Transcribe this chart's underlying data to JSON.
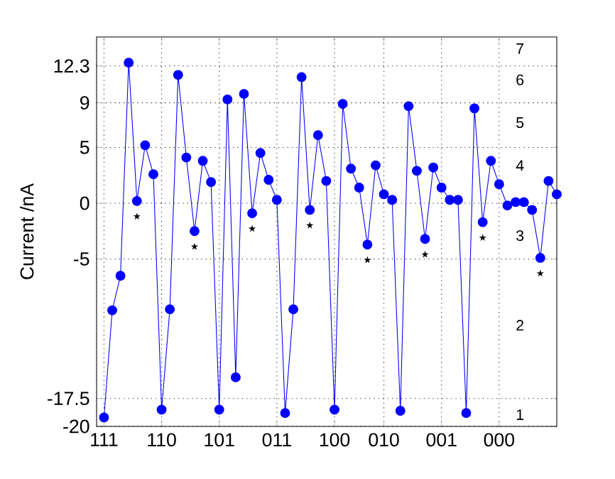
{
  "chart_data": {
    "type": "line",
    "ylabel": "Current /nA",
    "categories": [
      "111",
      null,
      null,
      null,
      null,
      null,
      null,
      "110",
      null,
      null,
      null,
      null,
      null,
      null,
      "101",
      null,
      null,
      null,
      null,
      null,
      null,
      "011",
      null,
      null,
      null,
      null,
      null,
      null,
      "100",
      null,
      null,
      null,
      null,
      null,
      "010",
      null,
      null,
      null,
      null,
      null,
      null,
      "001",
      null,
      null,
      null,
      null,
      null,
      null,
      "000",
      null,
      null,
      null,
      null,
      null,
      null,
      null
    ],
    "series": [
      {
        "color": "#0000ff",
        "values": [
          -19.2,
          -9.6,
          -6.5,
          12.6,
          0.2,
          5.2,
          2.6,
          -18.5,
          -9.5,
          11.5,
          4.1,
          -2.5,
          3.8,
          1.9,
          -18.5,
          9.3,
          -15.6,
          9.8,
          -0.9,
          4.5,
          2.1,
          0.3,
          -18.8,
          -9.5,
          11.3,
          -0.6,
          6.1,
          2.0,
          -18.5,
          8.9,
          3.1,
          1.4,
          -3.7,
          3.4,
          0.8,
          0.3,
          -18.6,
          8.7,
          2.9,
          -3.2,
          3.2,
          1.4,
          0.3,
          0.3,
          -18.8,
          8.5,
          -1.7,
          3.8,
          1.7,
          -0.2,
          0.1,
          0.1,
          -0.6,
          -4.9,
          2.0,
          0.8
        ]
      }
    ],
    "ylim": [
      -20,
      14.9
    ],
    "yticks": [
      -20,
      -17.5,
      -5,
      0,
      5,
      9,
      12.3
    ],
    "grid": true,
    "marker": "circle",
    "line_style": "solid",
    "annotations": [
      "⋆",
      "⋆",
      "⋆",
      "⋆",
      "⋆",
      "⋆",
      "⋆",
      "⋆",
      "7",
      "6",
      "5",
      "4",
      "3",
      "2",
      "1"
    ]
  }
}
